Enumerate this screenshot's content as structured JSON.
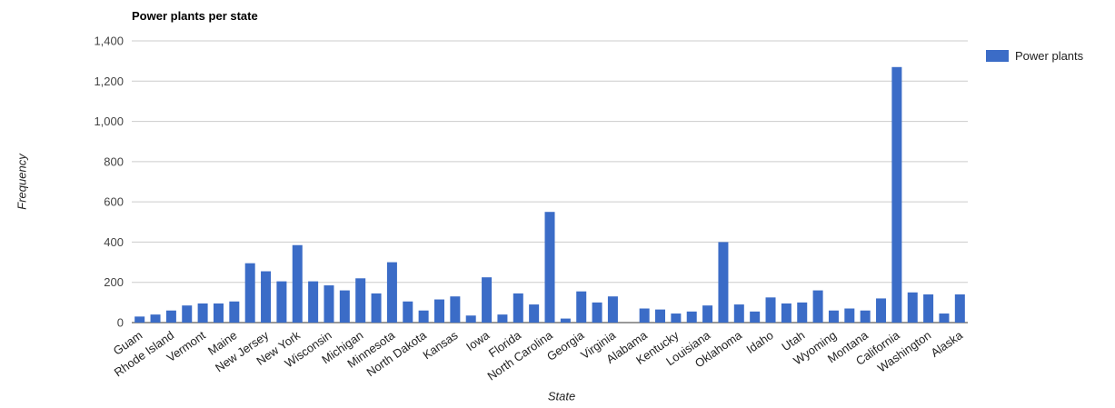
{
  "chart_data": {
    "type": "bar",
    "title": "Power plants per state",
    "xlabel": "State",
    "ylabel": "Frequency",
    "series_name": "Power plants",
    "legend_position": "right",
    "grid": true,
    "ylim": [
      0,
      1400
    ],
    "ytick_interval": 200,
    "ytick_labels": [
      "0",
      "200",
      "400",
      "600",
      "800",
      "1,000",
      "1,200",
      "1,400"
    ],
    "bar_color": "#3B6CC7",
    "gridline_color": "#cccccc",
    "baseline_color": "#333333",
    "bars": [
      {
        "label": "Guam",
        "value": 30
      },
      {
        "label": "",
        "value": 40
      },
      {
        "label": "Rhode Island",
        "value": 60
      },
      {
        "label": "",
        "value": 85
      },
      {
        "label": "Vermont",
        "value": 95
      },
      {
        "label": "",
        "value": 95
      },
      {
        "label": "Maine",
        "value": 105
      },
      {
        "label": "",
        "value": 295
      },
      {
        "label": "New Jersey",
        "value": 255
      },
      {
        "label": "",
        "value": 205
      },
      {
        "label": "New York",
        "value": 385
      },
      {
        "label": "",
        "value": 205
      },
      {
        "label": "Wisconsin",
        "value": 185
      },
      {
        "label": "",
        "value": 160
      },
      {
        "label": "Michigan",
        "value": 220
      },
      {
        "label": "",
        "value": 145
      },
      {
        "label": "Minnesota",
        "value": 300
      },
      {
        "label": "",
        "value": 105
      },
      {
        "label": "North Dakota",
        "value": 60
      },
      {
        "label": "",
        "value": 115
      },
      {
        "label": "Kansas",
        "value": 130
      },
      {
        "label": "",
        "value": 35
      },
      {
        "label": "Iowa",
        "value": 225
      },
      {
        "label": "",
        "value": 40
      },
      {
        "label": "Florida",
        "value": 145
      },
      {
        "label": "",
        "value": 90
      },
      {
        "label": "North Carolina",
        "value": 550
      },
      {
        "label": "",
        "value": 20
      },
      {
        "label": "Georgia",
        "value": 155
      },
      {
        "label": "",
        "value": 100
      },
      {
        "label": "Virginia",
        "value": 130
      },
      {
        "label": "",
        "value": 0
      },
      {
        "label": "Alabama",
        "value": 70
      },
      {
        "label": "",
        "value": 65
      },
      {
        "label": "Kentucky",
        "value": 45
      },
      {
        "label": "",
        "value": 55
      },
      {
        "label": "Louisiana",
        "value": 85
      },
      {
        "label": "",
        "value": 400
      },
      {
        "label": "Oklahoma",
        "value": 90
      },
      {
        "label": "",
        "value": 55
      },
      {
        "label": "Idaho",
        "value": 125
      },
      {
        "label": "",
        "value": 95
      },
      {
        "label": "Utah",
        "value": 100
      },
      {
        "label": "",
        "value": 160
      },
      {
        "label": "Wyoming",
        "value": 60
      },
      {
        "label": "",
        "value": 70
      },
      {
        "label": "Montana",
        "value": 60
      },
      {
        "label": "",
        "value": 120
      },
      {
        "label": "California",
        "value": 1270
      },
      {
        "label": "",
        "value": 150
      },
      {
        "label": "Washington",
        "value": 140
      },
      {
        "label": "",
        "value": 45
      },
      {
        "label": "Alaska",
        "value": 140
      }
    ]
  }
}
